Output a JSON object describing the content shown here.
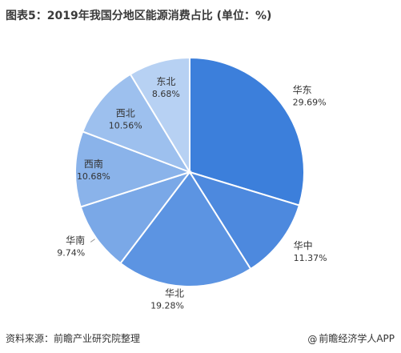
{
  "header": {
    "title": "图表5：2019年我国分地区能源消费占比 (单位：%)"
  },
  "footer": {
    "source": "资料来源：前瞻产业研究院整理",
    "credit_icon": "@",
    "credit": "前瞻经济学人APP"
  },
  "chart_data": {
    "type": "pie",
    "title": "图表5：2019年我国分地区能源消费占比 (单位：%)",
    "unit": "%",
    "categories": [
      "华东",
      "华中",
      "华北",
      "华南",
      "西南",
      "西北",
      "东北"
    ],
    "values": [
      29.69,
      11.37,
      19.28,
      9.74,
      10.68,
      10.56,
      8.68
    ],
    "value_labels": [
      "29.69%",
      "11.37%",
      "19.28%",
      "9.74%",
      "10.68%",
      "10.56%",
      "8.68%"
    ],
    "colors": [
      "#3c7fdb",
      "#4d89de",
      "#5c94e2",
      "#7aa8e7",
      "#8ab3ea",
      "#9dc0ee",
      "#b7d1f3"
    ],
    "start": "12 o'clock",
    "direction": "clockwise",
    "legend": "none"
  }
}
